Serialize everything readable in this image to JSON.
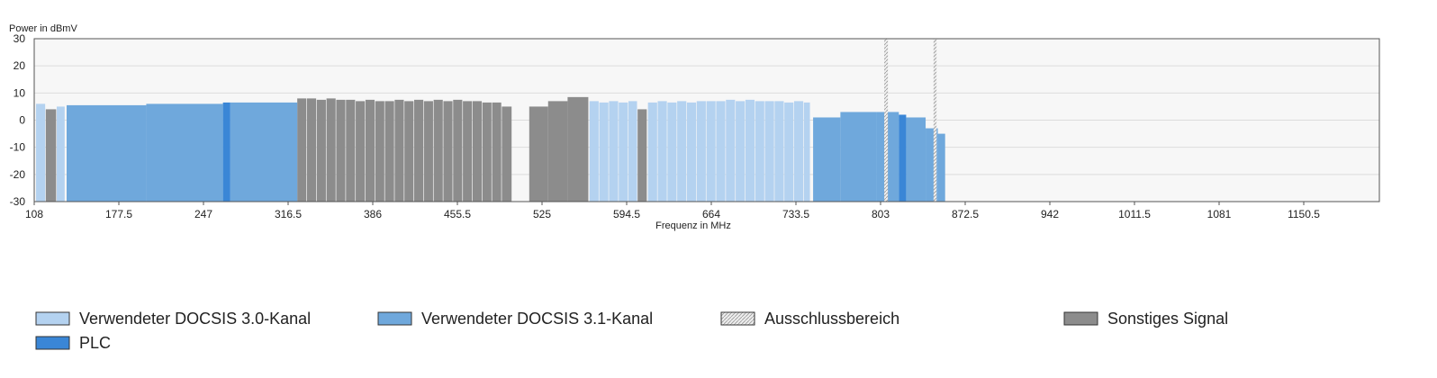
{
  "chart_data": {
    "type": "spectrum",
    "y_label": "Power in dBmV",
    "x_label": "Frequenz in MHz",
    "xlim": [
      108,
      1212.6
    ],
    "xticks": [
      108,
      177.5,
      247,
      316.5,
      386,
      455.5,
      525,
      594.5,
      664,
      733.5,
      803,
      872.5,
      942,
      1011.5,
      1081,
      1150.5
    ],
    "ylim": [
      -30,
      30
    ],
    "yticks": [
      30,
      20,
      10,
      0,
      -10,
      -20,
      -30
    ],
    "grid": true,
    "series": [
      {
        "name": "Verwendeter DOCSIS 3.0-Kanal",
        "color": "#b4d2f0",
        "bands": [
          [
            109.5,
            117,
            6
          ],
          [
            126.5,
            133,
            5
          ],
          [
            564,
            571.5,
            7
          ],
          [
            572,
            579.5,
            6.5
          ],
          [
            580,
            587.5,
            7
          ],
          [
            588,
            595.5,
            6.5
          ],
          [
            596,
            603,
            7
          ],
          [
            612,
            619.5,
            6.5
          ],
          [
            620,
            627.5,
            7
          ],
          [
            628,
            635.5,
            6.5
          ],
          [
            636,
            643.5,
            7
          ],
          [
            644,
            651.5,
            6.5
          ],
          [
            652,
            659.5,
            7
          ],
          [
            660,
            667.5,
            7
          ],
          [
            668,
            675.5,
            7
          ],
          [
            676,
            683.5,
            7.5
          ],
          [
            684,
            691.5,
            7
          ],
          [
            692,
            699.5,
            7.5
          ],
          [
            700,
            707.5,
            7
          ],
          [
            708,
            715.5,
            7
          ],
          [
            716,
            723.5,
            7
          ],
          [
            724,
            731.5,
            6.5
          ],
          [
            732,
            739.5,
            7
          ],
          [
            740,
            745,
            6.5
          ]
        ]
      },
      {
        "name": "Verwendeter DOCSIS 3.1-Kanal",
        "color": "#6fa8dc",
        "bands": [
          [
            134.6,
            200,
            5.5
          ],
          [
            200,
            263,
            6
          ],
          [
            269,
            324,
            6.5
          ],
          [
            747.6,
            770,
            1
          ],
          [
            770,
            800,
            3
          ],
          [
            800,
            818,
            3
          ],
          [
            824,
            840,
            1
          ],
          [
            840,
            850,
            -3
          ],
          [
            850,
            856,
            -5
          ]
        ]
      },
      {
        "name": "Ausschlussbereich",
        "color": "#d8d8d8",
        "bands": [
          [
            806,
            809,
            30
          ],
          [
            846.5,
            849,
            30
          ]
        ]
      },
      {
        "name": "Sonstiges Signal",
        "color": "#8c8c8c",
        "bands": [
          [
            117.5,
            126,
            4
          ],
          [
            324,
            331.5,
            8
          ],
          [
            332,
            339.5,
            8
          ],
          [
            340,
            347.5,
            7.5
          ],
          [
            348,
            355.5,
            8
          ],
          [
            356,
            363.5,
            7.5
          ],
          [
            364,
            371.5,
            7.5
          ],
          [
            372,
            379.5,
            7
          ],
          [
            380,
            387.5,
            7.5
          ],
          [
            388,
            395.5,
            7
          ],
          [
            396,
            403.5,
            7
          ],
          [
            404,
            411.5,
            7.5
          ],
          [
            412,
            419.5,
            7
          ],
          [
            420,
            427.5,
            7.5
          ],
          [
            428,
            435.5,
            7
          ],
          [
            436,
            443.5,
            7.5
          ],
          [
            444,
            451.5,
            7
          ],
          [
            452,
            459.5,
            7.5
          ],
          [
            460,
            467.5,
            7
          ],
          [
            468,
            475.5,
            7
          ],
          [
            476,
            483.5,
            6.5
          ],
          [
            484,
            491.5,
            6.5
          ],
          [
            492,
            500,
            5
          ],
          [
            514.5,
            530,
            5
          ],
          [
            530,
            546,
            7
          ],
          [
            546,
            563,
            8.5
          ],
          [
            603.5,
            611,
            4
          ]
        ]
      },
      {
        "name": "PLC",
        "color": "#3a86d6",
        "bands": [
          [
            263,
            269,
            6.5
          ],
          [
            818,
            824,
            2
          ]
        ]
      }
    ]
  }
}
